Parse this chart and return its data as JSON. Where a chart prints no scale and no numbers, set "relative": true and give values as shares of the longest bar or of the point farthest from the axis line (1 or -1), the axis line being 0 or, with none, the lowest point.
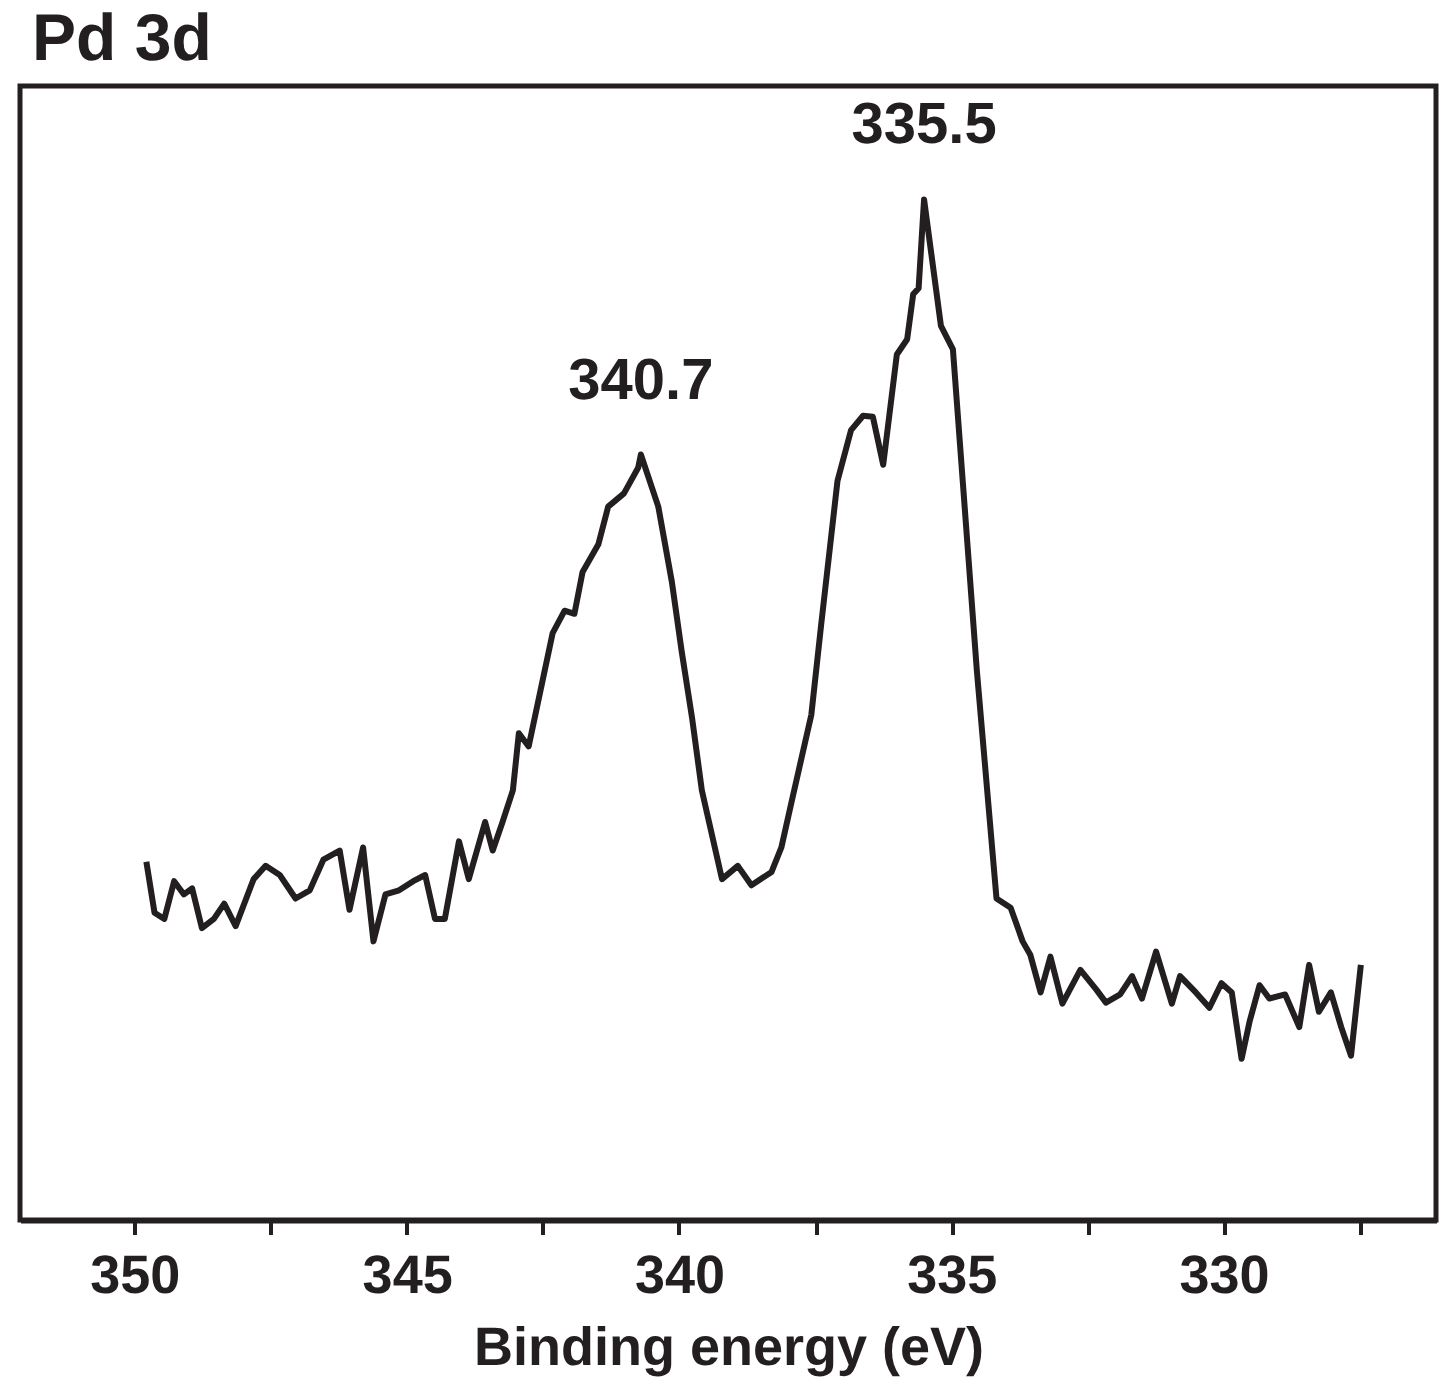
{
  "chart_data": {
    "type": "line",
    "title": "Pd 3d",
    "xlabel": "Binding energy (eV)",
    "relative": true,
    "grid": false,
    "marker": "none",
    "line_style": "solid",
    "xlim": [
      352.1,
      326.1
    ],
    "xticks": [
      350,
      {
        "value": 347.5,
        "label": null
      },
      345,
      {
        "value": 342.5,
        "label": null
      },
      340,
      {
        "value": 337.5,
        "label": null
      },
      335,
      {
        "value": 332.5,
        "label": null
      },
      330,
      {
        "value": 327.5,
        "label": null
      }
    ],
    "annotations": [
      {
        "text": "340.7",
        "x": 340.7,
        "y": 0.75
      },
      {
        "text": "335.5",
        "x": 335.5,
        "y": 1
      }
    ],
    "series": [
      {
        "color": "#231f20",
        "x": [
          349.78,
          349.63,
          349.45,
          349.27,
          349.09,
          348.94,
          348.76,
          348.54,
          348.35,
          348.14,
          347.81,
          347.59,
          347.33,
          347.04,
          346.78,
          346.53,
          346.23,
          346.05,
          345.8,
          345.61,
          345.39,
          345.14,
          344.88,
          344.66,
          344.48,
          344.3,
          344.04,
          343.86,
          343.56,
          343.42,
          343.24,
          343.05,
          342.94,
          342.76,
          342.32,
          342.1,
          341.92,
          341.77,
          341.48,
          341.3,
          341.01,
          340.75,
          340.7,
          340.38,
          340.13,
          339.95,
          339.76,
          339.58,
          339.21,
          338.92,
          338.67,
          338.3,
          338.12,
          337.94,
          337.57,
          337.39,
          337.09,
          336.84,
          336.62,
          336.44,
          336.25,
          336.0,
          335.81,
          335.7,
          335.6,
          335.5,
          335.19,
          334.97,
          334.79,
          334.53,
          334.17,
          333.91,
          333.69,
          333.55,
          333.36,
          333.18,
          332.96,
          332.63,
          332.34,
          332.16,
          331.9,
          331.68,
          331.5,
          331.24,
          330.95,
          330.8,
          330.51,
          330.26,
          330.04,
          329.85,
          329.67,
          329.52,
          329.34,
          329.16,
          328.87,
          328.61,
          328.43,
          328.25,
          328.03,
          327.84,
          327.66,
          327.48
        ],
        "values": [
          0.351,
          0.301,
          0.295,
          0.332,
          0.319,
          0.325,
          0.286,
          0.295,
          0.31,
          0.288,
          0.334,
          0.347,
          0.338,
          0.315,
          0.323,
          0.353,
          0.362,
          0.304,
          0.365,
          0.273,
          0.319,
          0.323,
          0.332,
          0.338,
          0.295,
          0.295,
          0.371,
          0.334,
          0.39,
          0.362,
          0.39,
          0.421,
          0.477,
          0.464,
          0.575,
          0.597,
          0.594,
          0.635,
          0.662,
          0.699,
          0.712,
          0.737,
          0.75,
          0.699,
          0.625,
          0.557,
          0.492,
          0.421,
          0.334,
          0.347,
          0.328,
          0.341,
          0.365,
          0.408,
          0.495,
          0.583,
          0.724,
          0.774,
          0.788,
          0.787,
          0.74,
          0.848,
          0.863,
          0.907,
          0.913,
          1,
          0.876,
          0.853,
          0.724,
          0.538,
          0.315,
          0.306,
          0.273,
          0.26,
          0.223,
          0.258,
          0.212,
          0.245,
          0.226,
          0.213,
          0.221,
          0.239,
          0.217,
          0.263,
          0.212,
          0.239,
          0.223,
          0.208,
          0.232,
          0.223,
          0.158,
          0.195,
          0.23,
          0.217,
          0.221,
          0.189,
          0.25,
          0.204,
          0.223,
          0.189,
          0.161,
          0.25
        ]
      }
    ]
  }
}
